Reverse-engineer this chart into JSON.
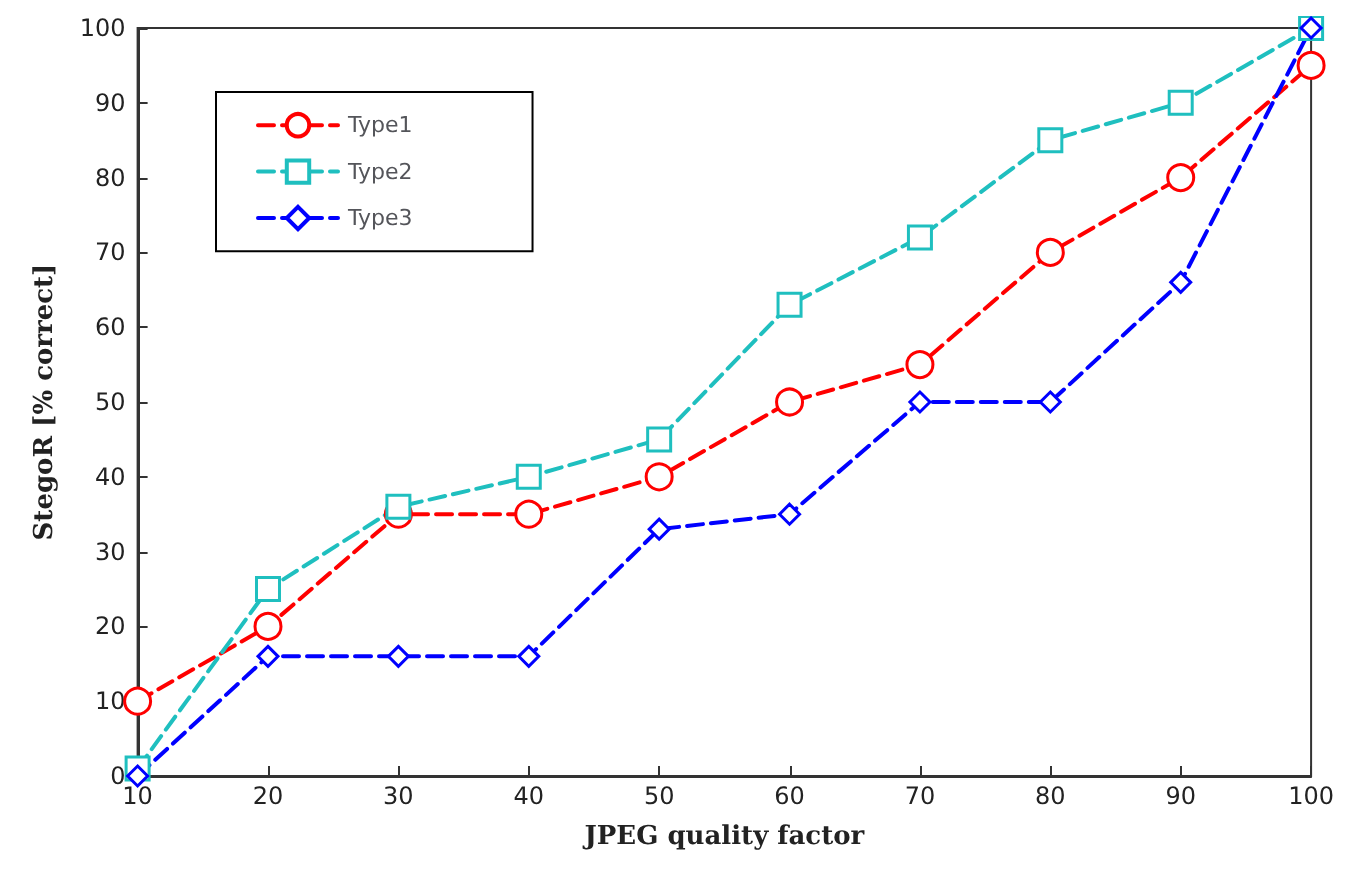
{
  "chart_data": {
    "type": "line",
    "xlabel": "JPEG quality factor",
    "ylabel": "StegoR [% correct]",
    "x": [
      10,
      20,
      30,
      40,
      50,
      60,
      70,
      80,
      90,
      100
    ],
    "series": [
      {
        "name": "Type1",
        "color": "#ff0000",
        "marker": "circle",
        "values": [
          10,
          20,
          35,
          35,
          40,
          50,
          55,
          70,
          80,
          95
        ]
      },
      {
        "name": "Type2",
        "color": "#1fbfbf",
        "marker": "square",
        "values": [
          1,
          25,
          36,
          40,
          45,
          63,
          72,
          85,
          90,
          100
        ]
      },
      {
        "name": "Type3",
        "color": "#0000ff",
        "marker": "diamond",
        "values": [
          0,
          16,
          16,
          16,
          33,
          35,
          50,
          50,
          66,
          100
        ]
      }
    ],
    "xlim": [
      10,
      100
    ],
    "xticks": [
      10,
      20,
      30,
      40,
      50,
      60,
      70,
      80,
      90,
      100
    ],
    "ylim": [
      0,
      100
    ],
    "yticks": [
      0,
      10,
      20,
      30,
      40,
      50,
      60,
      70,
      80,
      90,
      100
    ],
    "grid": false,
    "legend": "top left",
    "line_style": "dashed"
  }
}
